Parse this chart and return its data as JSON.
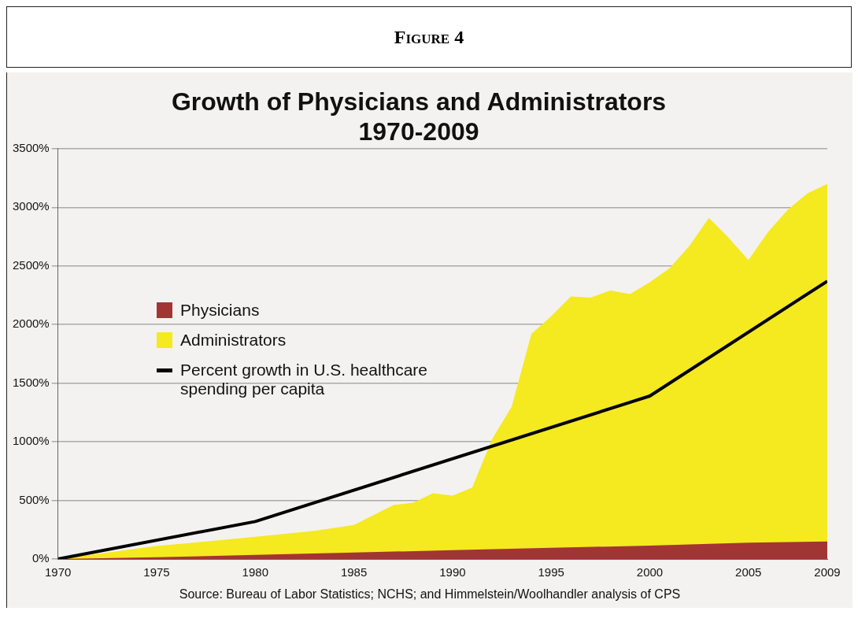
{
  "chart_data": {
    "type": "area",
    "title": "Growth of Physicians and Administrators\n1970-2009",
    "annotations": [
      "Figure 4",
      "Source: Bureau of Labor Statistics; NCHS; and Himmelstein/Woolhandler analysis of CPS"
    ],
    "series": [
      {
        "name": "Physicians",
        "color": "#a33434",
        "x": [
          1970,
          1975,
          1980,
          1985,
          1990,
          1995,
          2000,
          2005,
          2009
        ],
        "values": [
          0,
          15,
          35,
          55,
          75,
          95,
          115,
          140,
          150
        ]
      },
      {
        "name": "Administrators",
        "color": "#f5e920",
        "x": [
          1970,
          1975,
          1980,
          1983,
          1985,
          1987,
          1988,
          1989,
          1990,
          1991,
          1992,
          1993,
          1994,
          1995,
          1996,
          1997,
          1998,
          1999,
          2000,
          2001,
          2002,
          2003,
          2004,
          2005,
          2006,
          2007,
          2008,
          2009
        ],
        "values": [
          0,
          110,
          190,
          240,
          290,
          460,
          480,
          560,
          540,
          610,
          1020,
          1300,
          1920,
          2070,
          2240,
          2230,
          2290,
          2260,
          2360,
          2480,
          2670,
          2910,
          2740,
          2550,
          2790,
          2980,
          3120,
          3200
        ]
      },
      {
        "name": "Percent growth in U.S. healthcare spending per capita",
        "type": "line",
        "color": "#000000",
        "x": [
          1970,
          1980,
          2000,
          2009
        ],
        "values": [
          0,
          320,
          1390,
          2370
        ]
      }
    ],
    "xlim": [
      1970,
      2009
    ],
    "xticks": [
      1970,
      1975,
      1980,
      1985,
      1990,
      1995,
      2000,
      2005,
      2009
    ],
    "ylim": [
      0,
      3500
    ],
    "yticks": [
      {
        "value": 0,
        "label": "0%"
      },
      {
        "value": 500,
        "label": "500%"
      },
      {
        "value": 1000,
        "label": "1000%"
      },
      {
        "value": 1500,
        "label": "1500%"
      },
      {
        "value": 2000,
        "label": "2000%"
      },
      {
        "value": 2500,
        "label": "2500%"
      },
      {
        "value": 3000,
        "label": "3000%"
      },
      {
        "value": 3500,
        "label": "3500%"
      }
    ],
    "grid": "y",
    "legend": "left",
    "marker": "none",
    "line_style": "solid"
  }
}
